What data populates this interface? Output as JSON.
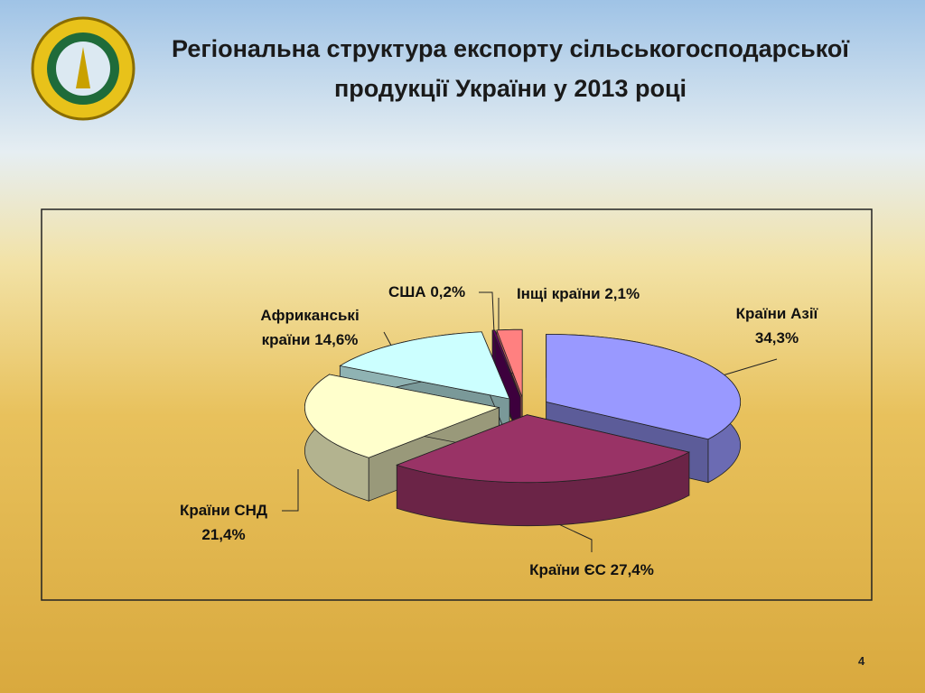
{
  "chart_data": {
    "type": "pie",
    "title": "Регіональна структура експорту сільськогосподарської продукції України у 2013 році",
    "categories": [
      "Країни Азії",
      "Країни ЄС",
      "Країни СНД",
      "Африканські країни",
      "США",
      "Інщі країни"
    ],
    "values": [
      34.3,
      27.4,
      21.4,
      14.6,
      0.2,
      2.1
    ],
    "value_labels": [
      "34,3%",
      "27,4%",
      "21,4%",
      "14,6%",
      "0,2%",
      "2,1%"
    ],
    "colors": [
      "#9999ff",
      "#993366",
      "#ffffcc",
      "#ccffff",
      "#660066",
      "#ff8080"
    ]
  },
  "slide": {
    "page_number": "4"
  }
}
